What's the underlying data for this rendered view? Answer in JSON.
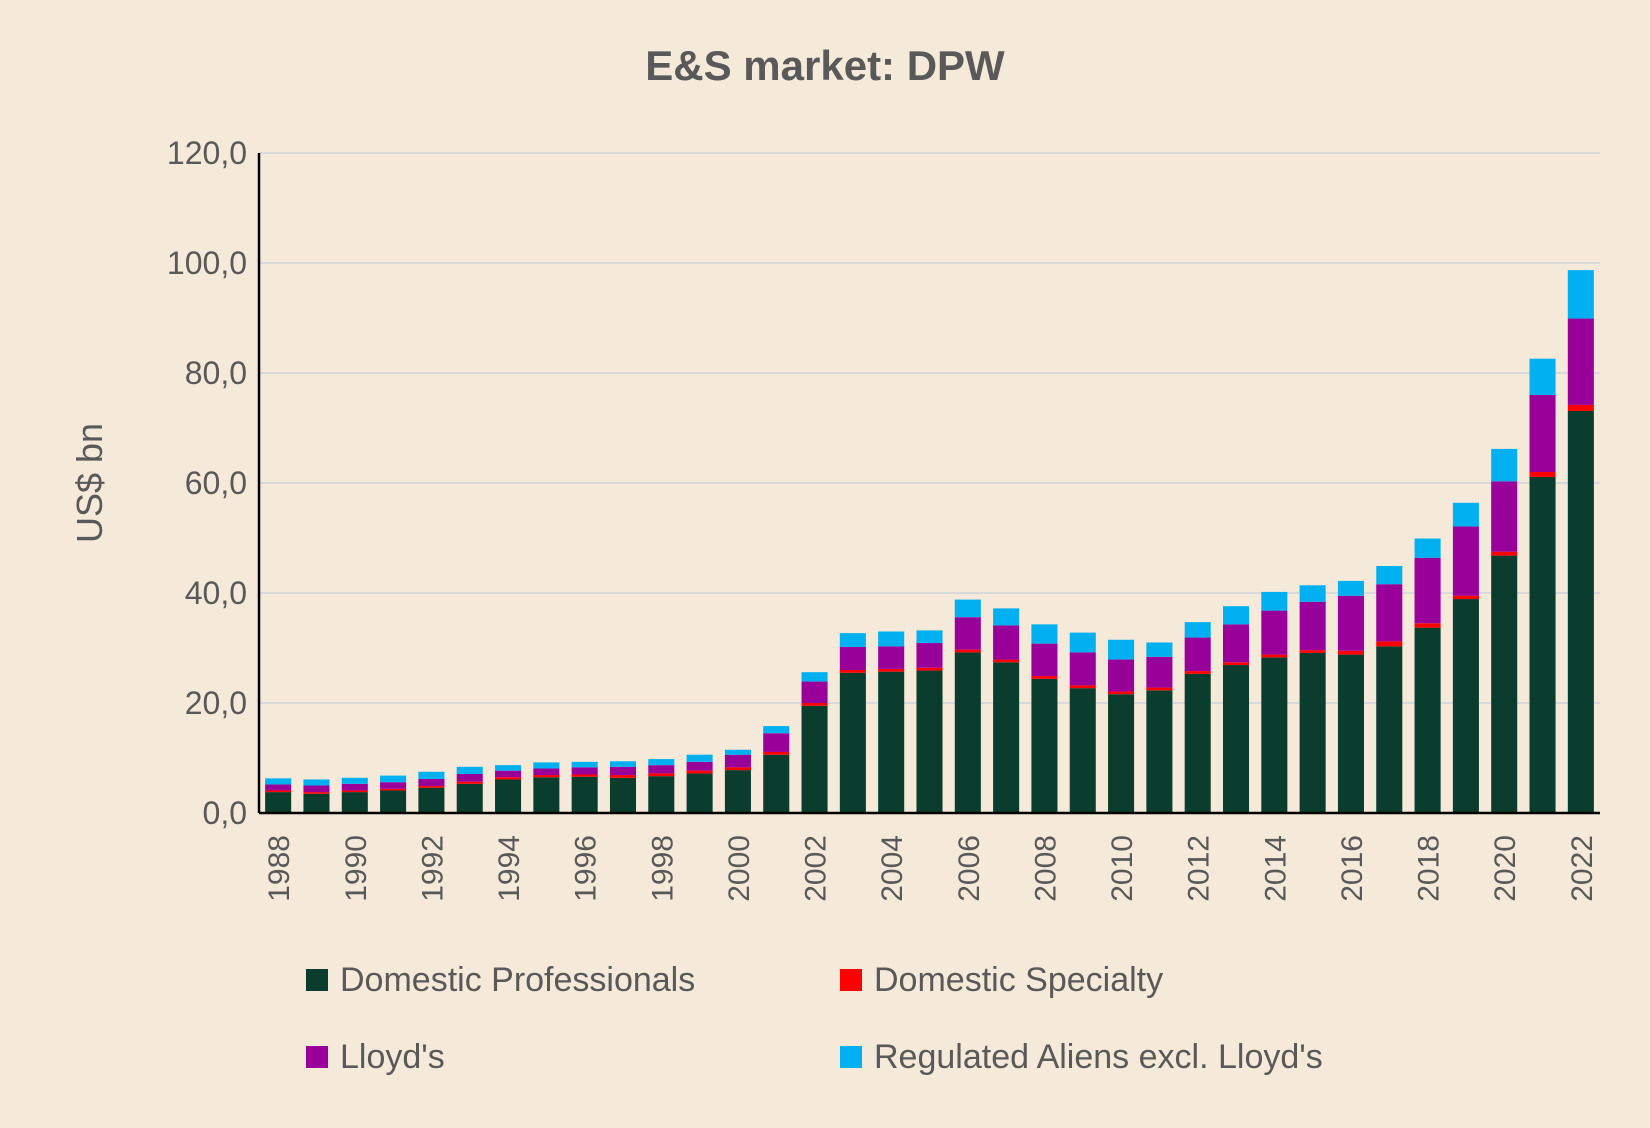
{
  "chart_data": {
    "type": "bar",
    "stacked": true,
    "title": "E&S market: DPW",
    "xlabel": "",
    "ylabel": "US$ bn",
    "ylim": [
      0,
      120
    ],
    "ytick_labels": [
      "0,0",
      "20,0",
      "40,0",
      "60,0",
      "80,0",
      "100,0",
      "120,0"
    ],
    "ytick_values": [
      0,
      20,
      40,
      60,
      80,
      100,
      120
    ],
    "grid": true,
    "legend_position": "bottom",
    "categories": [
      "1988",
      "1989",
      "1990",
      "1991",
      "1992",
      "1993",
      "1994",
      "1995",
      "1996",
      "1997",
      "1998",
      "1999",
      "2000",
      "2001",
      "2002",
      "2003",
      "2004",
      "2005",
      "2006",
      "2007",
      "2008",
      "2009",
      "2010",
      "2011",
      "2012",
      "2013",
      "2014",
      "2015",
      "2016",
      "2017",
      "2018",
      "2019",
      "2020",
      "2021",
      "2022"
    ],
    "xtick_labels": [
      "1988",
      "",
      "1990",
      "",
      "1992",
      "",
      "1994",
      "",
      "1996",
      "",
      "1998",
      "",
      "2000",
      "",
      "2002",
      "",
      "2004",
      "",
      "2006",
      "",
      "2008",
      "",
      "2010",
      "",
      "2012",
      "",
      "2014",
      "",
      "2016",
      "",
      "2018",
      "",
      "2020",
      "",
      "2022"
    ],
    "series": [
      {
        "name": "Domestic Professionals",
        "color": "#0b3d2e",
        "values": [
          3.8,
          3.5,
          3.8,
          4.1,
          4.6,
          5.3,
          6.1,
          6.5,
          6.6,
          6.4,
          6.7,
          7.2,
          7.8,
          10.6,
          19.5,
          25.5,
          25.7,
          25.9,
          29.2,
          27.4,
          24.4,
          22.7,
          21.6,
          22.3,
          25.3,
          26.9,
          28.3,
          29.1,
          28.8,
          30.3,
          33.7,
          38.9,
          46.8,
          61.1,
          73.1
        ]
      },
      {
        "name": "Domestic Specialty",
        "color": "#ff0000",
        "values": [
          0.3,
          0.3,
          0.3,
          0.3,
          0.3,
          0.4,
          0.4,
          0.4,
          0.4,
          0.5,
          0.5,
          0.5,
          0.5,
          0.5,
          0.5,
          0.5,
          0.5,
          0.5,
          0.5,
          0.5,
          0.5,
          0.5,
          0.5,
          0.5,
          0.5,
          0.5,
          0.5,
          0.5,
          0.7,
          0.9,
          0.8,
          0.6,
          0.7,
          0.9,
          1.1
        ]
      },
      {
        "name": "Lloyd's",
        "color": "#990099",
        "values": [
          1.1,
          1.2,
          1.2,
          1.2,
          1.3,
          1.4,
          1.2,
          1.2,
          1.3,
          1.5,
          1.5,
          1.6,
          2.3,
          3.4,
          3.9,
          4.2,
          4.1,
          4.5,
          5.9,
          6.2,
          5.9,
          6.0,
          5.8,
          5.6,
          6.1,
          6.9,
          8.0,
          8.8,
          10.0,
          10.4,
          11.9,
          12.6,
          12.8,
          14.0,
          15.7
        ]
      },
      {
        "name": "Regulated Aliens excl. Lloyd's",
        "color": "#00b0f0",
        "values": [
          1.1,
          1.1,
          1.1,
          1.2,
          1.3,
          1.3,
          1.0,
          1.1,
          1.0,
          1.0,
          1.1,
          1.3,
          0.9,
          1.3,
          1.7,
          2.5,
          2.7,
          2.3,
          3.2,
          3.1,
          3.5,
          3.6,
          3.6,
          2.6,
          2.8,
          3.3,
          3.4,
          3.0,
          2.7,
          3.3,
          3.5,
          4.3,
          5.9,
          6.6,
          8.8
        ]
      }
    ]
  }
}
